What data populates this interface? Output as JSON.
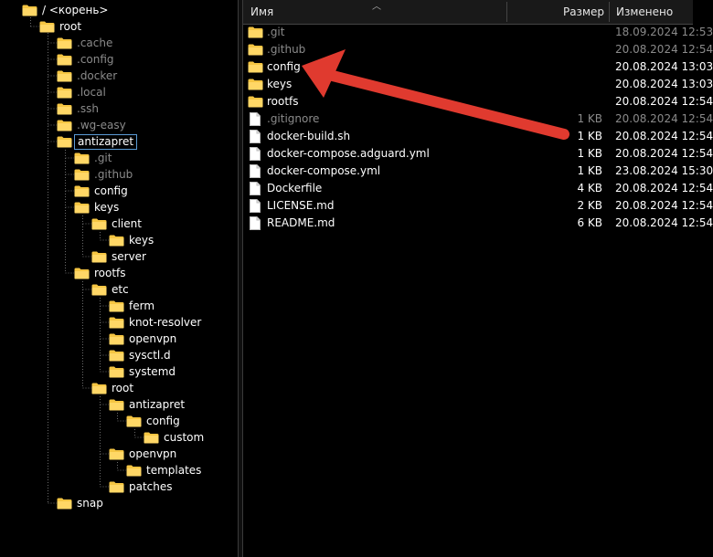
{
  "tree": {
    "items": [
      {
        "label": "/ <корень>",
        "hidden": false
      },
      {
        "label": "root",
        "hidden": false
      },
      {
        "label": ".cache",
        "hidden": true
      },
      {
        "label": ".config",
        "hidden": true
      },
      {
        "label": ".docker",
        "hidden": true
      },
      {
        "label": ".local",
        "hidden": true
      },
      {
        "label": ".ssh",
        "hidden": true
      },
      {
        "label": ".wg-easy",
        "hidden": true
      },
      {
        "label": "antizapret",
        "hidden": false,
        "selected": true
      },
      {
        "label": ".git",
        "hidden": true
      },
      {
        "label": ".github",
        "hidden": true
      },
      {
        "label": "config",
        "hidden": false
      },
      {
        "label": "keys",
        "hidden": false
      },
      {
        "label": "client",
        "hidden": false
      },
      {
        "label": "keys",
        "hidden": false
      },
      {
        "label": "server",
        "hidden": false
      },
      {
        "label": "rootfs",
        "hidden": false
      },
      {
        "label": "etc",
        "hidden": false
      },
      {
        "label": "ferm",
        "hidden": false
      },
      {
        "label": "knot-resolver",
        "hidden": false
      },
      {
        "label": "openvpn",
        "hidden": false
      },
      {
        "label": "sysctl.d",
        "hidden": false
      },
      {
        "label": "systemd",
        "hidden": false
      },
      {
        "label": "root",
        "hidden": false
      },
      {
        "label": "antizapret",
        "hidden": false
      },
      {
        "label": "config",
        "hidden": false
      },
      {
        "label": "custom",
        "hidden": false
      },
      {
        "label": "openvpn",
        "hidden": false
      },
      {
        "label": "templates",
        "hidden": false
      },
      {
        "label": "patches",
        "hidden": false
      },
      {
        "label": "snap",
        "hidden": false
      }
    ]
  },
  "list": {
    "columns": {
      "name": "Имя",
      "size": "Размер",
      "modified": "Изменено"
    },
    "rows": [
      {
        "name": ".git",
        "type": "folder",
        "size": "",
        "date": "18.09.2024 12:53",
        "hidden": true
      },
      {
        "name": ".github",
        "type": "folder",
        "size": "",
        "date": "20.08.2024 12:54",
        "hidden": true
      },
      {
        "name": "config",
        "type": "folder",
        "size": "",
        "date": "20.08.2024 13:03",
        "hidden": false
      },
      {
        "name": "keys",
        "type": "folder",
        "size": "",
        "date": "20.08.2024 13:03",
        "hidden": false
      },
      {
        "name": "rootfs",
        "type": "folder",
        "size": "",
        "date": "20.08.2024 12:54",
        "hidden": false
      },
      {
        "name": ".gitignore",
        "type": "file",
        "size": "1 KB",
        "date": "20.08.2024 12:54",
        "hidden": true
      },
      {
        "name": "docker-build.sh",
        "type": "file",
        "size": "1 KB",
        "date": "20.08.2024 12:54",
        "hidden": false
      },
      {
        "name": "docker-compose.adguard.yml",
        "type": "file",
        "size": "1 KB",
        "date": "20.08.2024 12:54",
        "hidden": false
      },
      {
        "name": "docker-compose.yml",
        "type": "file",
        "size": "1 KB",
        "date": "23.08.2024 15:30",
        "hidden": false
      },
      {
        "name": "Dockerfile",
        "type": "file",
        "size": "4 KB",
        "date": "20.08.2024 12:54",
        "hidden": false
      },
      {
        "name": "LICENSE.md",
        "type": "file",
        "size": "2 KB",
        "date": "20.08.2024 12:54",
        "hidden": false
      },
      {
        "name": "README.md",
        "type": "file",
        "size": "6 KB",
        "date": "20.08.2024 12:54",
        "hidden": false
      }
    ]
  },
  "colors": {
    "folder": "#f5c542",
    "annotation_arrow": "#e03a2f",
    "selection_border": "#5b9bd5"
  },
  "icons": {
    "folder": "folder-icon",
    "file": "file-icon",
    "sort": "sort-up-icon"
  }
}
